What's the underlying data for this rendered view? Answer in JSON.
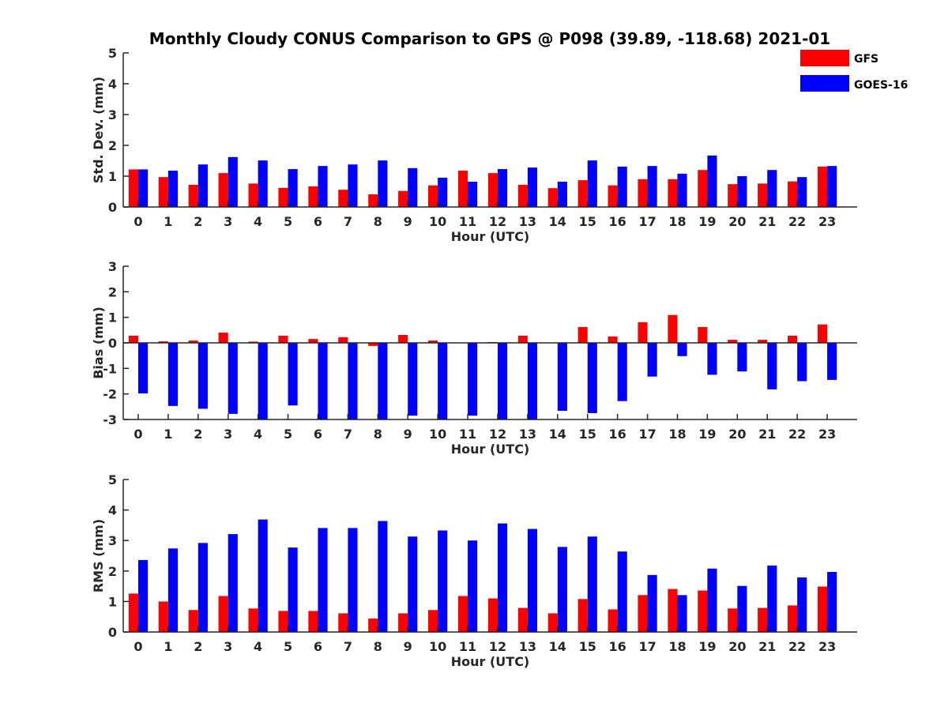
{
  "figure": {
    "title": "Monthly Cloudy CONUS Comparison to GPS @ P098 (39.89, -118.68) 2021-01"
  },
  "legend": {
    "placement": "top-right",
    "entries": [
      {
        "label": "GFS",
        "color": "#ff0000"
      },
      {
        "label": "GOES-16",
        "color": "#0000ff"
      }
    ]
  },
  "chart_data": [
    {
      "id": "std",
      "type": "bar",
      "title": "Monthly Cloudy CONUS Comparison to GPS @ P098 (39.89, -118.68) 2021-01",
      "xlabel": "Hour (UTC)",
      "ylabel": "Std. Dev. (mm)",
      "ylim": [
        0,
        5
      ],
      "yticks": [
        0,
        1,
        2,
        3,
        4,
        5
      ],
      "categories": [
        "0",
        "1",
        "2",
        "3",
        "4",
        "5",
        "6",
        "7",
        "8",
        "9",
        "10",
        "11",
        "12",
        "13",
        "14",
        "15",
        "16",
        "17",
        "18",
        "19",
        "20",
        "21",
        "22",
        "23"
      ],
      "series": [
        {
          "name": "GFS",
          "color": "#ff0000",
          "values": [
            1.22,
            0.97,
            0.72,
            1.1,
            0.76,
            0.62,
            0.67,
            0.56,
            0.41,
            0.52,
            0.7,
            1.18,
            1.1,
            0.72,
            0.61,
            0.87,
            0.7,
            0.9,
            0.9,
            1.2,
            0.74,
            0.76,
            0.83,
            1.31
          ]
        },
        {
          "name": "GOES-16",
          "color": "#0000ff",
          "values": [
            1.22,
            1.18,
            1.38,
            1.62,
            1.51,
            1.23,
            1.33,
            1.38,
            1.51,
            1.26,
            0.95,
            0.82,
            1.23,
            1.28,
            0.82,
            1.51,
            1.31,
            1.33,
            1.08,
            1.67,
            1.0,
            1.2,
            0.97,
            1.33
          ]
        }
      ]
    },
    {
      "id": "bias",
      "type": "bar",
      "xlabel": "Hour (UTC)",
      "ylabel": "Bias (mm)",
      "ylim": [
        -3,
        3
      ],
      "yticks": [
        -3,
        -2,
        -1,
        0,
        1,
        2,
        3
      ],
      "categories": [
        "0",
        "1",
        "2",
        "3",
        "4",
        "5",
        "6",
        "7",
        "8",
        "9",
        "10",
        "11",
        "12",
        "13",
        "14",
        "15",
        "16",
        "17",
        "18",
        "19",
        "20",
        "21",
        "22",
        "23"
      ],
      "series": [
        {
          "name": "GFS",
          "color": "#ff0000",
          "values": [
            0.28,
            0.06,
            0.09,
            0.4,
            0.05,
            0.28,
            0.15,
            0.22,
            -0.12,
            0.31,
            0.09,
            0.0,
            0.03,
            0.28,
            0.0,
            0.62,
            0.25,
            0.81,
            1.09,
            0.62,
            0.12,
            0.12,
            0.28,
            0.72
          ]
        },
        {
          "name": "GOES-16",
          "color": "#0000ff",
          "values": [
            -1.98,
            -2.47,
            -2.58,
            -2.78,
            -3.0,
            -2.45,
            -3.0,
            -3.0,
            -3.0,
            -2.85,
            -3.0,
            -2.85,
            -3.0,
            -3.0,
            -2.66,
            -2.75,
            -2.28,
            -1.32,
            -0.52,
            -1.25,
            -1.12,
            -1.82,
            -1.5,
            -1.45
          ]
        }
      ]
    },
    {
      "id": "rms",
      "type": "bar",
      "xlabel": "Hour (UTC)",
      "ylabel": "RMS (mm)",
      "ylim": [
        0,
        5
      ],
      "yticks": [
        0,
        1,
        2,
        3,
        4,
        5
      ],
      "categories": [
        "0",
        "1",
        "2",
        "3",
        "4",
        "5",
        "6",
        "7",
        "8",
        "9",
        "10",
        "11",
        "12",
        "13",
        "14",
        "15",
        "16",
        "17",
        "18",
        "19",
        "20",
        "21",
        "22",
        "23"
      ],
      "series": [
        {
          "name": "GFS",
          "color": "#ff0000",
          "values": [
            1.26,
            1.0,
            0.72,
            1.18,
            0.77,
            0.69,
            0.69,
            0.61,
            0.44,
            0.61,
            0.72,
            1.18,
            1.1,
            0.79,
            0.61,
            1.08,
            0.74,
            1.21,
            1.41,
            1.36,
            0.77,
            0.79,
            0.87,
            1.49
          ]
        },
        {
          "name": "GOES-16",
          "color": "#0000ff",
          "values": [
            2.36,
            2.74,
            2.92,
            3.21,
            3.69,
            2.77,
            3.41,
            3.41,
            3.64,
            3.13,
            3.33,
            3.0,
            3.56,
            3.38,
            2.79,
            3.13,
            2.64,
            1.87,
            1.21,
            2.08,
            1.51,
            2.18,
            1.79,
            1.97
          ]
        }
      ]
    }
  ]
}
